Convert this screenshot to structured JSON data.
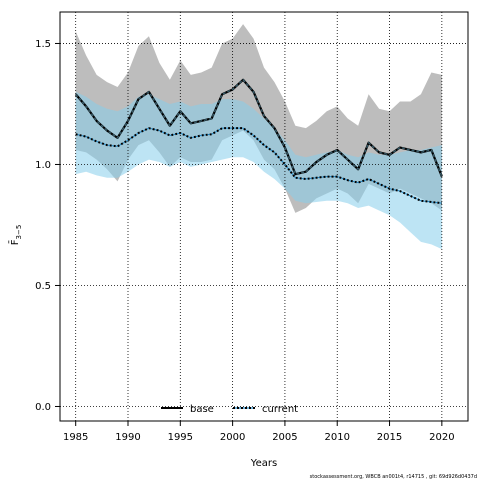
{
  "chart_data": {
    "type": "line",
    "xlabel": "Years",
    "ylabel": "F̄",
    "ylabel_subscript": "3−5",
    "xlim": [
      1983.5,
      2022.5
    ],
    "ylim": [
      -0.06,
      1.63
    ],
    "xticks": [
      1985,
      1990,
      1995,
      2000,
      2005,
      2010,
      2015,
      2020
    ],
    "xtick_labels": [
      "1985",
      "1990",
      "1995",
      "2000",
      "2005",
      "2010",
      "2015",
      "2020"
    ],
    "yticks": [
      0.0,
      0.5,
      1.0,
      1.5
    ],
    "ytick_labels": [
      "0.0",
      "0.5",
      "1.0",
      "1.5"
    ],
    "grid": "dotted",
    "legend_position": "bottom-center",
    "x": [
      1985,
      1986,
      1987,
      1988,
      1989,
      1990,
      1991,
      1992,
      1993,
      1994,
      1995,
      1996,
      1997,
      1998,
      1999,
      2000,
      2001,
      2002,
      2003,
      2004,
      2005,
      2006,
      2007,
      2008,
      2009,
      2010,
      2011,
      2012,
      2013,
      2014,
      2015,
      2016,
      2017,
      2018,
      2019,
      2020
    ],
    "series": [
      {
        "name": "base",
        "color": "#000000",
        "band_color": "#bdbdbd",
        "values": [
          1.29,
          1.24,
          1.18,
          1.14,
          1.11,
          1.18,
          1.27,
          1.3,
          1.23,
          1.16,
          1.22,
          1.17,
          1.18,
          1.19,
          1.29,
          1.31,
          1.35,
          1.3,
          1.2,
          1.15,
          1.07,
          0.96,
          0.97,
          1.01,
          1.04,
          1.06,
          1.02,
          0.98,
          1.09,
          1.05,
          1.04,
          1.07,
          1.06,
          1.05,
          1.06,
          0.95
        ],
        "upper": [
          1.55,
          1.45,
          1.37,
          1.34,
          1.32,
          1.38,
          1.49,
          1.53,
          1.42,
          1.35,
          1.43,
          1.37,
          1.38,
          1.4,
          1.5,
          1.52,
          1.58,
          1.52,
          1.4,
          1.34,
          1.26,
          1.16,
          1.15,
          1.18,
          1.22,
          1.24,
          1.19,
          1.16,
          1.29,
          1.23,
          1.22,
          1.26,
          1.26,
          1.29,
          1.38,
          1.37
        ],
        "lower": [
          1.06,
          1.05,
          1.02,
          0.98,
          0.93,
          1.02,
          1.08,
          1.1,
          1.05,
          0.99,
          1.03,
          1.01,
          1.01,
          1.02,
          1.1,
          1.12,
          1.14,
          1.1,
          1.02,
          0.98,
          0.9,
          0.8,
          0.82,
          0.86,
          0.88,
          0.9,
          0.88,
          0.84,
          0.92,
          0.9,
          0.88,
          0.9,
          0.88,
          0.86,
          0.84,
          0.81
        ]
      },
      {
        "name": "current",
        "color": "#000000",
        "band_color": "#87ceeb",
        "values": [
          1.125,
          1.115,
          1.095,
          1.08,
          1.075,
          1.1,
          1.13,
          1.15,
          1.14,
          1.12,
          1.13,
          1.11,
          1.12,
          1.125,
          1.15,
          1.15,
          1.15,
          1.12,
          1.08,
          1.05,
          1.0,
          0.945,
          0.94,
          0.945,
          0.95,
          0.95,
          0.935,
          0.925,
          0.94,
          0.92,
          0.9,
          0.89,
          0.87,
          0.85,
          0.845,
          0.84
        ],
        "upper": [
          1.3,
          1.28,
          1.25,
          1.23,
          1.22,
          1.24,
          1.28,
          1.29,
          1.27,
          1.25,
          1.26,
          1.24,
          1.25,
          1.25,
          1.27,
          1.27,
          1.26,
          1.23,
          1.19,
          1.15,
          1.1,
          1.04,
          1.03,
          1.04,
          1.05,
          1.06,
          1.04,
          1.03,
          1.05,
          1.04,
          1.04,
          1.05,
          1.06,
          1.06,
          1.07,
          1.08
        ],
        "lower": [
          0.96,
          0.97,
          0.955,
          0.945,
          0.945,
          0.97,
          1.0,
          1.02,
          1.01,
          0.99,
          1.01,
          0.99,
          1.0,
          1.01,
          1.02,
          1.03,
          1.03,
          1.01,
          0.97,
          0.94,
          0.9,
          0.85,
          0.84,
          0.845,
          0.85,
          0.85,
          0.84,
          0.82,
          0.83,
          0.81,
          0.79,
          0.76,
          0.72,
          0.68,
          0.67,
          0.65
        ]
      }
    ]
  },
  "legend": {
    "base_label": "base",
    "current_label": "current"
  },
  "footer_text": "stockassessment.org,  WBCB  an001t4,  r14715 ,  git:  69d926d0437d"
}
